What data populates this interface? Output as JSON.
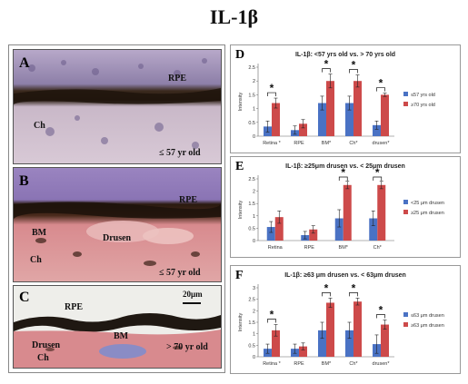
{
  "figure_title": "IL-1β",
  "photos": [
    {
      "letter": "A",
      "labels": {
        "rpe": "RPE",
        "ch": "Ch",
        "age": "≤ 57 yr old"
      }
    },
    {
      "letter": "B",
      "labels": {
        "rpe": "RPE",
        "bm": "BM",
        "drusen": "Drusen",
        "ch": "Ch",
        "age": "≤ 57 yr old"
      }
    },
    {
      "letter": "C",
      "labels": {
        "rpe": "RPE",
        "bm": "BM",
        "drusen": "Drusen",
        "ch": "Ch",
        "age": "> 70 yr old",
        "scale": "20μm"
      }
    }
  ],
  "colors": {
    "blue": "#4a72c4",
    "red": "#cd4a4a"
  },
  "chart_data": [
    {
      "letter": "D",
      "type": "bar",
      "title": "IL-1β: <57 yrs old vs. > 70 yrs old",
      "ylabel": "Intensity",
      "ylim": [
        0,
        2.5
      ],
      "yticks": [
        "0",
        "0.5",
        "1",
        "1.5",
        "2",
        "2.5"
      ],
      "categories": [
        "Retina *",
        "RPE",
        "BM*",
        "Ch*",
        "drusen*"
      ],
      "series": [
        {
          "name": "≤57 yrs old",
          "values": [
            0.35,
            0.22,
            1.2,
            1.2,
            0.4
          ],
          "errors": [
            0.2,
            0.15,
            0.25,
            0.25,
            0.15
          ]
        },
        {
          "name": "≥70 yrs old",
          "values": [
            1.2,
            0.45,
            2.0,
            2.0,
            1.5
          ],
          "errors": [
            0.18,
            0.15,
            0.25,
            0.22,
            0.06
          ]
        }
      ],
      "stars": [
        0,
        2,
        3,
        4
      ]
    },
    {
      "letter": "E",
      "type": "bar",
      "title": "IL-1β: ≥25μm drusen vs. < 25μm drusen",
      "ylabel": "Intensity",
      "ylim": [
        0,
        2.5
      ],
      "yticks": [
        "0",
        "0.5",
        "1",
        "1.5",
        "2",
        "2.5"
      ],
      "categories": [
        "Retina",
        "RPE",
        "BM*",
        "Ch*"
      ],
      "series": [
        {
          "name": "<25 μm drusen",
          "values": [
            0.55,
            0.22,
            0.9,
            0.9
          ],
          "errors": [
            0.22,
            0.15,
            0.35,
            0.3
          ]
        },
        {
          "name": "≥25 μm drusen",
          "values": [
            0.95,
            0.45,
            2.25,
            2.25
          ],
          "errors": [
            0.25,
            0.15,
            0.15,
            0.15
          ]
        }
      ],
      "stars": [
        2,
        3
      ]
    },
    {
      "letter": "F",
      "type": "bar",
      "title": "IL-1β: ≥63 μm drusen vs. < 63μm drusen",
      "ylabel": "Intensity",
      "ylim": [
        0,
        3
      ],
      "yticks": [
        "0",
        "0.5",
        "1",
        "1.5",
        "2",
        "2.5",
        "3"
      ],
      "categories": [
        "Retina *",
        "RPE",
        "BM*",
        "Ch*",
        "drusen*"
      ],
      "series": [
        {
          "name": "≤63 μm drusen",
          "values": [
            0.35,
            0.35,
            1.15,
            1.15,
            0.55
          ],
          "errors": [
            0.2,
            0.2,
            0.35,
            0.35,
            0.4
          ]
        },
        {
          "name": "≥63 μm drusen",
          "values": [
            1.15,
            0.45,
            2.35,
            2.4,
            1.4
          ],
          "errors": [
            0.25,
            0.15,
            0.2,
            0.15,
            0.2
          ]
        }
      ],
      "stars": [
        0,
        2,
        3,
        4
      ]
    }
  ]
}
